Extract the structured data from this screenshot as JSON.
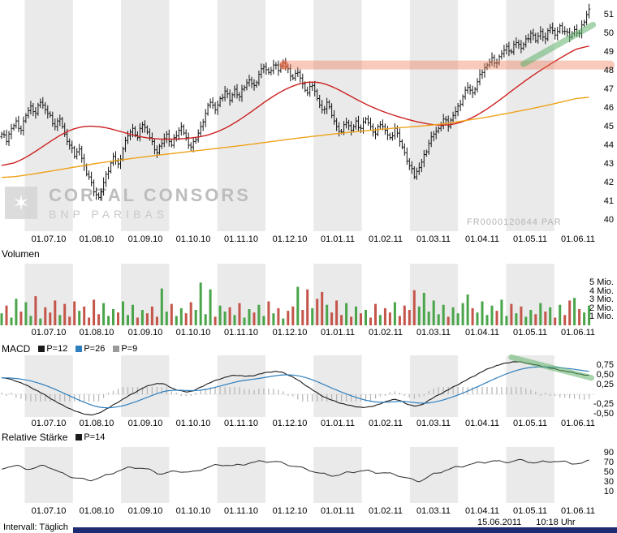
{
  "meta": {
    "watermark_line1": "CORTAL CONSORS",
    "watermark_line2": "BNP PARIBAS",
    "instrument_code": "FR0000120644 PAR"
  },
  "footer": {
    "interval_label": "Intervall: Täglich",
    "date": "15.06.2011",
    "time": "10:18 Uhr"
  },
  "panels": {
    "volume": {
      "title": "Volumen"
    },
    "macd": {
      "title": "MACD",
      "legend": [
        {
          "label": "P=12",
          "color": "#1a1a1a"
        },
        {
          "label": "P=26",
          "color": "#2e7fbe"
        },
        {
          "label": "P=9",
          "color": "#9a9a9a"
        }
      ]
    },
    "rsi": {
      "title": "Relative Stärke",
      "legend": [
        {
          "label": "P=14",
          "color": "#1a1a1a"
        }
      ]
    }
  },
  "chart_data": {
    "type": "candlestick",
    "x_labels": [
      "01.07.10",
      "01.08.10",
      "01.09.10",
      "01.10.10",
      "01.11.10",
      "01.12.10",
      "01.01.11",
      "01.02.11",
      "01.03.11",
      "01.04.11",
      "01.05.11",
      "01.06.11"
    ],
    "price": {
      "ylim": [
        40,
        51
      ],
      "yticks": [
        {
          "label": "51",
          "value": 51
        },
        {
          "label": "50",
          "value": 50
        },
        {
          "label": "49",
          "value": 49
        },
        {
          "label": "48",
          "value": 48
        },
        {
          "label": "47",
          "value": 47
        },
        {
          "label": "46",
          "value": 46
        },
        {
          "label": "45",
          "value": 45
        },
        {
          "label": "44",
          "value": 44
        },
        {
          "label": "43",
          "value": 43
        },
        {
          "label": "42",
          "value": 42
        },
        {
          "label": "41",
          "value": 41
        },
        {
          "label": "40",
          "value": 40
        }
      ],
      "closes": [
        44.6,
        44.2,
        44.9,
        45.3,
        44.8,
        45.6,
        46.1,
        45.7,
        46.3,
        45.9,
        45.6,
        45.0,
        45.4,
        44.6,
        44.0,
        43.4,
        43.8,
        42.9,
        42.3,
        41.5,
        41.2,
        42.0,
        42.6,
        43.4,
        43.0,
        43.8,
        44.5,
        44.9,
        44.4,
        45.1,
        44.7,
        44.2,
        43.6,
        44.1,
        44.6,
        44.0,
        44.5,
        45.0,
        44.4,
        43.9,
        44.3,
        45.0,
        45.7,
        46.3,
        45.9,
        46.5,
        46.9,
        46.4,
        47.0,
        46.6,
        47.1,
        47.5,
        47.2,
        47.8,
        48.2,
        47.9,
        48.3,
        48.0,
        48.4,
        48.1,
        47.6,
        47.9,
        47.3,
        46.8,
        47.2,
        46.5,
        45.9,
        46.3,
        45.6,
        45.0,
        44.7,
        45.2,
        44.8,
        45.3,
        44.9,
        45.4,
        45.0,
        44.6,
        45.1,
        44.8,
        44.4,
        44.9,
        44.2,
        43.6,
        42.9,
        42.3,
        42.8,
        43.5,
        44.1,
        44.6,
        44.9,
        45.4,
        45.0,
        45.6,
        46.1,
        46.6,
        47.1,
        46.8,
        47.4,
        47.9,
        48.3,
        48.7,
        48.4,
        48.9,
        49.3,
        49.0,
        49.5,
        49.2,
        49.7,
        50.0,
        49.6,
        50.1,
        49.7,
        50.3,
        49.9,
        50.4,
        50.1,
        49.8,
        50.2,
        50.0,
        50.6,
        51.3
      ],
      "ma_fast_anchors": [
        [
          0,
          42.7
        ],
        [
          5,
          43.3
        ],
        [
          10,
          44.2
        ],
        [
          14,
          44.9
        ],
        [
          18,
          45.1
        ],
        [
          22,
          44.95
        ],
        [
          26,
          44.6
        ],
        [
          30,
          44.35
        ],
        [
          34,
          44.3
        ],
        [
          38,
          44.35
        ],
        [
          42,
          44.45
        ],
        [
          46,
          44.85
        ],
        [
          50,
          45.5
        ],
        [
          54,
          46.3
        ],
        [
          58,
          47.0
        ],
        [
          62,
          47.4
        ],
        [
          65,
          47.5
        ],
        [
          68,
          47.2
        ],
        [
          72,
          46.6
        ],
        [
          76,
          46.05
        ],
        [
          80,
          45.65
        ],
        [
          84,
          45.35
        ],
        [
          88,
          45.1
        ],
        [
          92,
          45.0
        ],
        [
          96,
          45.3
        ],
        [
          100,
          45.9
        ],
        [
          104,
          46.7
        ],
        [
          108,
          47.5
        ],
        [
          112,
          48.2
        ],
        [
          116,
          48.8
        ],
        [
          119,
          49.3
        ],
        [
          121,
          49.6
        ]
      ],
      "ma_slow_anchors": [
        [
          0,
          42.2
        ],
        [
          10,
          42.6
        ],
        [
          20,
          43.05
        ],
        [
          30,
          43.4
        ],
        [
          40,
          43.7
        ],
        [
          50,
          44.0
        ],
        [
          60,
          44.35
        ],
        [
          70,
          44.65
        ],
        [
          80,
          44.9
        ],
        [
          90,
          45.1
        ],
        [
          100,
          45.5
        ],
        [
          110,
          46.0
        ],
        [
          116,
          46.35
        ],
        [
          121,
          46.7
        ]
      ]
    },
    "volume": {
      "unit": "Mio.",
      "yticks": [
        {
          "label": "5 Mio.",
          "value": 5
        },
        {
          "label": "4 Mio.",
          "value": 4
        },
        {
          "label": "3 Mio.",
          "value": 3
        },
        {
          "label": "2 Mio.",
          "value": 2
        },
        {
          "label": "1 Mio.",
          "value": 1
        }
      ],
      "values": [
        1.4,
        2.3,
        0.9,
        3.1,
        1.6,
        2.7,
        1.1,
        3.4,
        0.8,
        2.1,
        1.5,
        2.9,
        1.2,
        2.5,
        1.0,
        2.8,
        1.7,
        2.2,
        0.9,
        3.0,
        1.3,
        2.6,
        1.1,
        1.9,
        1.5,
        2.8,
        1.2,
        2.4,
        0.9,
        1.8,
        1.4,
        2.2,
        1.0,
        4.3,
        1.6,
        2.5,
        1.1,
        2.0,
        1.4,
        2.7,
        1.8,
        5.0,
        1.3,
        4.2,
        1.0,
        2.3,
        1.6,
        2.1,
        1.2,
        2.6,
        0.9,
        1.9,
        1.5,
        2.4,
        1.1,
        2.8,
        1.4,
        2.0,
        0.8,
        1.7,
        2.2,
        4.5,
        1.8,
        4.2,
        2.0,
        3.1,
        3.9,
        2.4,
        1.5,
        2.9,
        1.2,
        2.6,
        1.0,
        2.2,
        1.4,
        1.8,
        0.9,
        2.5,
        1.2,
        2.0,
        1.5,
        2.7,
        1.1,
        2.3,
        1.8,
        4.1,
        2.2,
        3.8,
        1.6,
        2.9,
        1.3,
        2.4,
        1.0,
        2.1,
        1.4,
        2.6,
        3.6,
        2.0,
        1.5,
        2.8,
        1.2,
        2.3,
        1.7,
        3.0,
        1.1,
        2.5,
        1.4,
        2.2,
        1.0,
        1.8,
        1.3,
        2.6,
        1.6,
        2.1,
        0.9,
        2.4,
        1.2,
        2.9,
        3.2,
        1.9,
        1.5,
        2.3
      ]
    },
    "macd": {
      "yticks": [
        {
          "label": "0,75",
          "value": 0.75
        },
        {
          "label": "0,50",
          "value": 0.5
        },
        {
          "label": "0,25",
          "value": 0.25
        },
        {
          "label": "-0,25",
          "value": -0.25
        },
        {
          "label": "-0,50",
          "value": -0.5
        }
      ],
      "anchors": [
        [
          0,
          0.45
        ],
        [
          4,
          0.3
        ],
        [
          8,
          0.05
        ],
        [
          12,
          -0.25
        ],
        [
          16,
          -0.48
        ],
        [
          19,
          -0.55
        ],
        [
          22,
          -0.35
        ],
        [
          26,
          -0.05
        ],
        [
          30,
          0.22
        ],
        [
          33,
          0.3
        ],
        [
          36,
          0.1
        ],
        [
          39,
          0.05
        ],
        [
          42,
          0.25
        ],
        [
          45,
          0.4
        ],
        [
          48,
          0.5
        ],
        [
          51,
          0.45
        ],
        [
          54,
          0.55
        ],
        [
          57,
          0.6
        ],
        [
          60,
          0.45
        ],
        [
          63,
          0.2
        ],
        [
          66,
          -0.05
        ],
        [
          69,
          -0.2
        ],
        [
          72,
          -0.3
        ],
        [
          75,
          -0.35
        ],
        [
          78,
          -0.25
        ],
        [
          81,
          -0.1
        ],
        [
          84,
          -0.28
        ],
        [
          86,
          -0.32
        ],
        [
          88,
          -0.15
        ],
        [
          91,
          0.05
        ],
        [
          94,
          0.25
        ],
        [
          97,
          0.45
        ],
        [
          100,
          0.65
        ],
        [
          103,
          0.78
        ],
        [
          106,
          0.85
        ],
        [
          109,
          0.78
        ],
        [
          112,
          0.7
        ],
        [
          115,
          0.62
        ],
        [
          118,
          0.55
        ],
        [
          121,
          0.47
        ]
      ]
    },
    "rsi": {
      "yticks": [
        {
          "label": "90",
          "value": 90
        },
        {
          "label": "70",
          "value": 70
        },
        {
          "label": "50",
          "value": 50
        },
        {
          "label": "30",
          "value": 30
        },
        {
          "label": "10",
          "value": 10
        }
      ],
      "anchors": [
        [
          0,
          58
        ],
        [
          3,
          62
        ],
        [
          6,
          55
        ],
        [
          9,
          64
        ],
        [
          12,
          48
        ],
        [
          15,
          38
        ],
        [
          18,
          32
        ],
        [
          21,
          40
        ],
        [
          24,
          52
        ],
        [
          27,
          60
        ],
        [
          30,
          55
        ],
        [
          33,
          45
        ],
        [
          36,
          52
        ],
        [
          39,
          48
        ],
        [
          42,
          58
        ],
        [
          45,
          65
        ],
        [
          48,
          62
        ],
        [
          51,
          68
        ],
        [
          54,
          72
        ],
        [
          57,
          70
        ],
        [
          60,
          62
        ],
        [
          63,
          55
        ],
        [
          66,
          45
        ],
        [
          69,
          42
        ],
        [
          72,
          50
        ],
        [
          75,
          52
        ],
        [
          78,
          48
        ],
        [
          81,
          45
        ],
        [
          84,
          35
        ],
        [
          86,
          30
        ],
        [
          89,
          45
        ],
        [
          92,
          55
        ],
        [
          95,
          62
        ],
        [
          98,
          68
        ],
        [
          101,
          72
        ],
        [
          104,
          70
        ],
        [
          107,
          74
        ],
        [
          110,
          68
        ],
        [
          113,
          72
        ],
        [
          116,
          70
        ],
        [
          119,
          66
        ],
        [
          121,
          72
        ]
      ]
    },
    "annotations": {
      "resistance_band": {
        "price": 48.3,
        "color": "#f07a55"
      },
      "price_trend_highlight": {
        "from": {
          "index": 107.5,
          "price": 48.35
        },
        "to": {
          "index": 121.8,
          "price": 50.45
        },
        "color": "#61b26a"
      },
      "macd_trend_highlight": {
        "from": {
          "index": 105,
          "value": 0.95
        },
        "to": {
          "index": 121.5,
          "value": 0.42
        },
        "color": "#61b26a"
      }
    }
  }
}
